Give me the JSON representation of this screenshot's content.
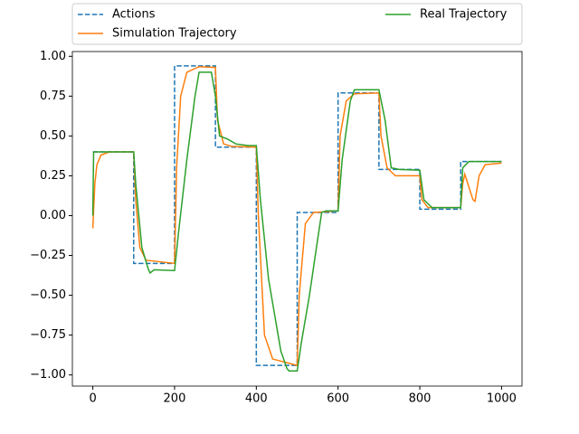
{
  "chart_data": {
    "type": "line",
    "legend": "upper center outside",
    "xlim": [
      -50,
      1050
    ],
    "ylim": [
      -1.07,
      1.03
    ],
    "xticks": [
      0,
      200,
      400,
      600,
      800,
      1000
    ],
    "yticks": [
      {
        "value": -1,
        "label": "−1.00"
      },
      {
        "value": -0.75,
        "label": "−0.75"
      },
      {
        "value": -0.5,
        "label": "−0.50"
      },
      {
        "value": -0.25,
        "label": "−0.25"
      },
      {
        "value": 0,
        "label": "0.00"
      },
      {
        "value": 0.25,
        "label": "0.25"
      },
      {
        "value": 0.5,
        "label": "0.50"
      },
      {
        "value": 0.75,
        "label": "0.75"
      },
      {
        "value": 1,
        "label": "1.00"
      }
    ],
    "series": [
      {
        "name": "Actions",
        "color": "#1f77b4",
        "dash": true,
        "x": [
          0,
          100,
          100,
          200,
          200,
          300,
          300,
          400,
          400,
          500,
          500,
          600,
          600,
          700,
          700,
          800,
          800,
          900,
          900,
          1000
        ],
        "values": [
          0.4,
          0.4,
          -0.3,
          -0.3,
          0.94,
          0.94,
          0.43,
          0.43,
          -0.94,
          -0.94,
          0.02,
          0.02,
          0.77,
          0.77,
          0.29,
          0.29,
          0.04,
          0.04,
          0.34,
          0.34
        ]
      },
      {
        "name": "Simulation Trajectory",
        "color": "#ff7f0e",
        "dash": false,
        "x": [
          0,
          5,
          10,
          20,
          40,
          100,
          105,
          115,
          130,
          200,
          205,
          215,
          230,
          260,
          300,
          305,
          320,
          340,
          400,
          405,
          420,
          440,
          500,
          505,
          520,
          540,
          600,
          605,
          620,
          640,
          700,
          705,
          720,
          740,
          800,
          805,
          820,
          900,
          905,
          910,
          920,
          930,
          935,
          945,
          960,
          1000
        ],
        "values": [
          -0.08,
          0.2,
          0.32,
          0.38,
          0.4,
          0.4,
          0.1,
          -0.2,
          -0.28,
          -0.3,
          0.3,
          0.75,
          0.9,
          0.935,
          0.93,
          0.6,
          0.45,
          0.435,
          0.43,
          0,
          -0.75,
          -0.9,
          -0.94,
          -0.5,
          -0.05,
          0.02,
          0.03,
          0.5,
          0.72,
          0.765,
          0.77,
          0.5,
          0.3,
          0.25,
          0.25,
          0.1,
          0.05,
          0.05,
          0.2,
          0.26,
          0.18,
          0.1,
          0.09,
          0.25,
          0.32,
          0.33
        ]
      },
      {
        "name": "Real Trajectory",
        "color": "#2ca02c",
        "dash": false,
        "x": [
          0,
          2,
          100,
          105,
          120,
          135,
          140,
          150,
          200,
          210,
          230,
          250,
          260,
          290,
          300,
          310,
          330,
          350,
          380,
          400,
          410,
          430,
          460,
          475,
          480,
          500,
          510,
          530,
          550,
          560,
          570,
          600,
          610,
          630,
          640,
          700,
          715,
          730,
          750,
          800,
          810,
          830,
          900,
          905,
          920,
          1000
        ],
        "values": [
          0,
          0.4,
          0.4,
          0.2,
          -0.2,
          -0.33,
          -0.36,
          -0.34,
          -0.345,
          -0.1,
          0.35,
          0.75,
          0.9,
          0.9,
          0.75,
          0.5,
          0.48,
          0.45,
          0.44,
          0.44,
          0.1,
          -0.4,
          -0.85,
          -0.96,
          -0.975,
          -0.975,
          -0.8,
          -0.5,
          -0.15,
          0.02,
          0.03,
          0.03,
          0.35,
          0.72,
          0.79,
          0.79,
          0.6,
          0.3,
          0.29,
          0.285,
          0.1,
          0.05,
          0.05,
          0.3,
          0.34,
          0.34
        ]
      }
    ]
  }
}
